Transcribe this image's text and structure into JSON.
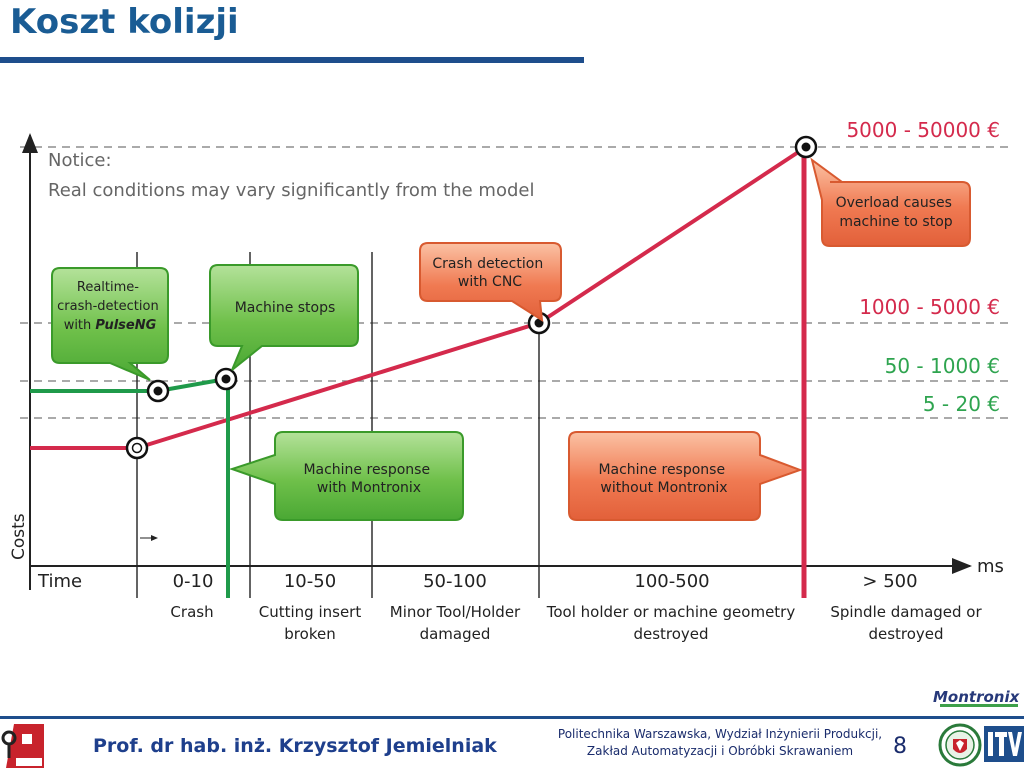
{
  "slide": {
    "title": "Koszt kolizji",
    "author": "Prof. dr hab. inż. Krzysztof Jemielniak",
    "institution_line1": "Politechnika Warszawska, Wydział Inżynierii Produkcji,",
    "institution_line2": "Zakład Automatyzacji i Obróbki Skrawaniem",
    "page_number": "8",
    "brand": "Montronix"
  },
  "diagram": {
    "notice_title": "Notice:",
    "notice_text": "Real conditions may vary significantly from the model",
    "axis_y_label": "Costs",
    "axis_x_label": "Time",
    "axis_x_unit": "ms",
    "time_ranges": [
      "0-10",
      "10-50",
      "50-100",
      "100-500",
      "> 500"
    ],
    "consequences": [
      [
        "Crash"
      ],
      [
        "Cutting insert",
        "broken"
      ],
      [
        "Minor Tool/Holder",
        "damaged"
      ],
      [
        "Tool holder or machine geometry",
        "destroyed"
      ],
      [
        "Spindle damaged or",
        "destroyed"
      ]
    ],
    "cost_levels": [
      {
        "label": "5000 - 50000 €",
        "color": "#d42a4c"
      },
      {
        "label": "1000 - 5000 €",
        "color": "#d42a4c"
      },
      {
        "label": "50 - 1000 €",
        "color": "#2ea44f"
      },
      {
        "label": "5 - 20 €",
        "color": "#2ea44f"
      }
    ],
    "callouts": {
      "realtime": [
        "Realtime-",
        "crash-detection",
        "with "
      ],
      "realtime_emph": "PulseNG",
      "machine_stops": [
        "Machine stops"
      ],
      "crash_detection_cnc": [
        "Crash detection",
        "with CNC"
      ],
      "overload": [
        "Overload causes",
        "machine to stop"
      ],
      "response_with": [
        "Machine response",
        "with Montronix"
      ],
      "response_without": [
        "Machine response",
        "without Montronix"
      ]
    },
    "colors": {
      "red_line": "#d42a4c",
      "green_line": "#1f9a4a",
      "green_bubble": "#6cc04a",
      "orange_bubble": "#ee7650",
      "title_blue": "#1a5c94"
    }
  }
}
